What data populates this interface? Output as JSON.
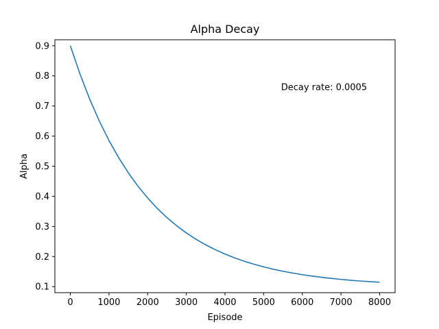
{
  "chart_data": {
    "type": "line",
    "title": "Alpha Decay",
    "xlabel": "Episode",
    "ylabel": "Alpha",
    "xlim": [
      -400,
      8400
    ],
    "ylim": [
      0.08,
      0.92
    ],
    "x_ticks": [
      0,
      1000,
      2000,
      3000,
      4000,
      5000,
      6000,
      7000,
      8000
    ],
    "y_ticks": [
      0.1,
      0.2,
      0.3,
      0.4,
      0.5,
      0.6,
      0.7,
      0.8,
      0.9
    ],
    "grid": false,
    "series": [
      {
        "color": "#1f77b4",
        "x": [
          0,
          250,
          500,
          750,
          1000,
          1250,
          1500,
          1750,
          2000,
          2250,
          2500,
          2750,
          3000,
          3250,
          3500,
          3750,
          4000,
          4250,
          4500,
          4750,
          5000,
          5250,
          5500,
          5750,
          6000,
          6250,
          6500,
          6750,
          7000,
          7250,
          7500,
          7750,
          8000
        ],
        "y": [
          0.9,
          0.8059,
          0.723,
          0.6498,
          0.5852,
          0.5282,
          0.4779,
          0.4335,
          0.3943,
          0.3597,
          0.3292,
          0.3023,
          0.2785,
          0.2575,
          0.239,
          0.2227,
          0.2083,
          0.1955,
          0.1843,
          0.1744,
          0.1657,
          0.1579,
          0.1511,
          0.1451,
          0.1398,
          0.1351,
          0.131,
          0.1273,
          0.1241,
          0.1212,
          0.1187,
          0.1165,
          0.1147
        ]
      }
    ],
    "annotations": [
      {
        "text": "Decay rate: 0.0005",
        "x": 5450,
        "y": 0.7625
      }
    ]
  }
}
